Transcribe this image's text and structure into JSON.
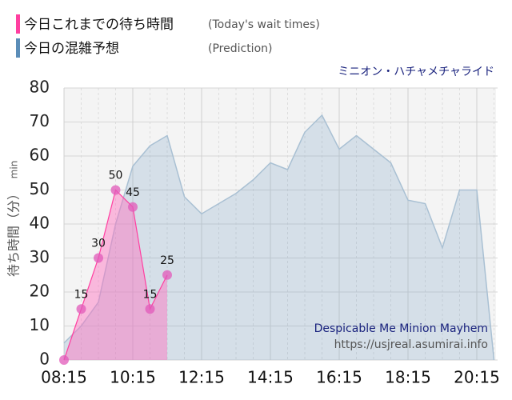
{
  "chart_data": {
    "type": "area",
    "title": "ミニオン・ハチャメチャライド",
    "y_label": "待ち時間（分）",
    "y_unit": "min",
    "annotations": [
      "Despicable Me Minion Mayhem",
      "https://usjreal.asumirai.info"
    ],
    "xlim": [
      "08:15",
      "20:45"
    ],
    "xticks": [
      "08:15",
      "10:15",
      "12:15",
      "14:15",
      "16:15",
      "18:15",
      "20:15"
    ],
    "ylim": [
      0,
      80
    ],
    "yticks": [
      0,
      10,
      20,
      30,
      40,
      50,
      60,
      70,
      80
    ],
    "grid": true,
    "series": [
      {
        "name": "今日これまでの待ち時間",
        "note": "(Today's wait times)",
        "color": "#ff3fa0",
        "x": [
          "08:15",
          "08:45",
          "09:15",
          "09:45",
          "10:15",
          "10:45",
          "11:15"
        ],
        "values": [
          0,
          15,
          30,
          50,
          45,
          15,
          25
        ],
        "value_labels": [
          null,
          "15",
          "30",
          "50",
          "45",
          "15",
          "25"
        ]
      },
      {
        "name": "今日の混雑予想",
        "note": "(Prediction)",
        "color": "#5b8db8",
        "x": [
          "08:15",
          "08:45",
          "09:15",
          "09:45",
          "10:15",
          "10:45",
          "11:15",
          "11:45",
          "12:15",
          "12:45",
          "13:15",
          "13:45",
          "14:15",
          "14:45",
          "15:15",
          "15:45",
          "16:15",
          "16:45",
          "17:15",
          "17:45",
          "18:15",
          "18:45",
          "19:15",
          "19:45",
          "20:15",
          "20:45"
        ],
        "values": [
          5,
          10,
          17,
          40,
          57,
          63,
          66,
          48,
          43,
          46,
          49,
          53,
          58,
          56,
          67,
          72,
          62,
          66,
          62,
          58,
          47,
          46,
          33,
          50,
          50,
          0
        ]
      }
    ]
  }
}
